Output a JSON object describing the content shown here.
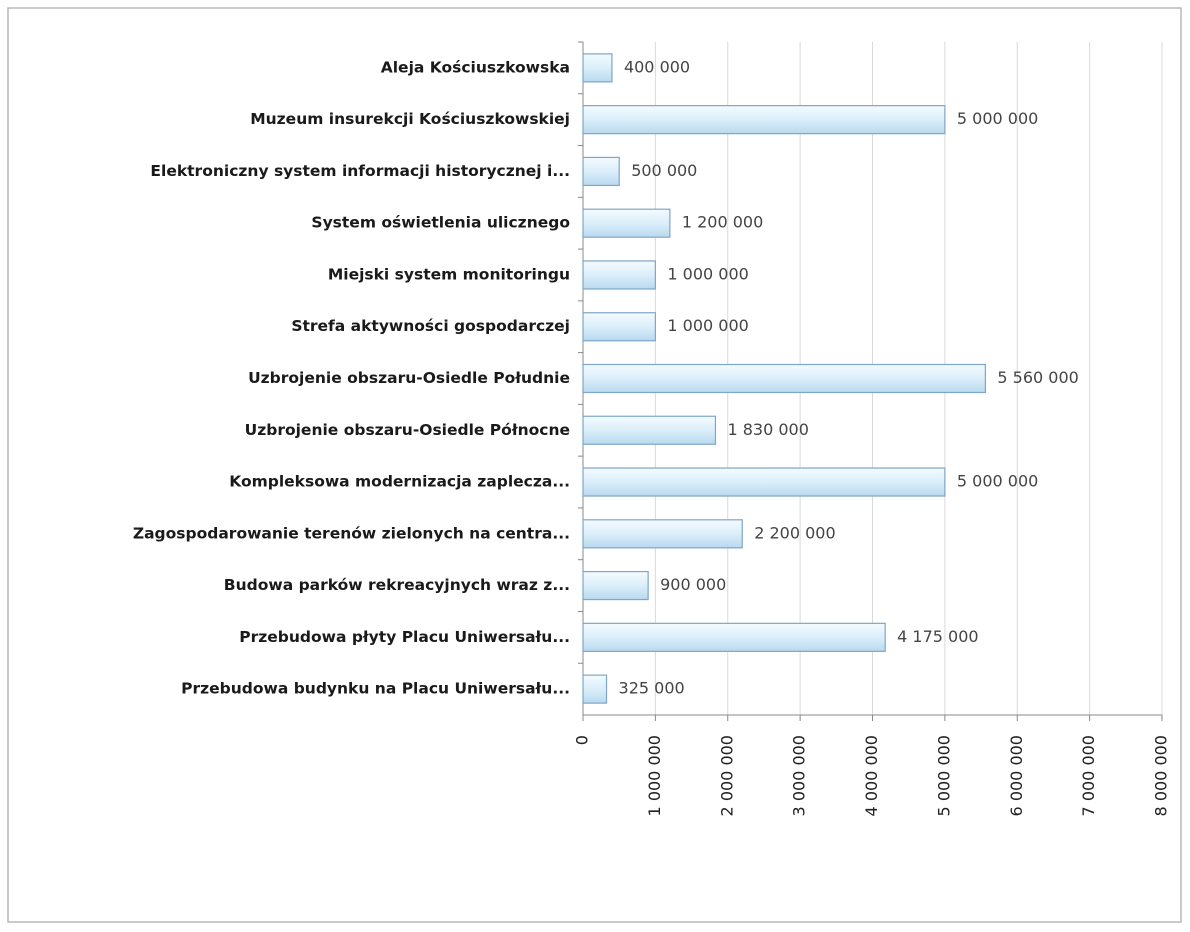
{
  "chart_data": {
    "type": "bar",
    "orientation": "horizontal",
    "categories": [
      "Aleja Kościuszkowska",
      "Muzeum insurekcji Kościuszkowskiej",
      "Elektroniczny system informacji historycznej i...",
      "System oświetlenia ulicznego",
      "Miejski system monitoringu",
      "Strefa aktywności gospodarczej",
      "Uzbrojenie obszaru-Osiedle Południe",
      "Uzbrojenie obszaru-Osiedle Północne",
      "Kompleksowa modernizacja zaplecza...",
      "Zagospodarowanie terenów zielonych na centra...",
      "Budowa parków rekreacyjnych wraz z...",
      "Przebudowa płyty Placu Uniwersału...",
      "Przebudowa budynku na Placu Uniwersału..."
    ],
    "values": [
      400000,
      5000000,
      500000,
      1200000,
      1000000,
      1000000,
      5560000,
      1830000,
      5000000,
      2200000,
      900000,
      4175000,
      325000
    ],
    "value_labels": [
      "400 000",
      "5 000 000",
      "500 000",
      "1 200 000",
      "1 000 000",
      "1 000 000",
      "5 560 000",
      "1 830 000",
      "5 000 000",
      "2 200 000",
      "900 000",
      "4 175 000",
      "325 000"
    ],
    "color": "#dbeefa",
    "xlim": [
      0,
      8000000
    ],
    "xticks": [
      0,
      {
        "value": 1000000,
        "label": "1 000 000"
      },
      {
        "value": 2000000,
        "label": "2 000 000"
      },
      {
        "value": 3000000,
        "label": "3 000 000"
      },
      {
        "value": 4000000,
        "label": "4 000 000"
      },
      {
        "value": 5000000,
        "label": "5 000 000"
      },
      {
        "value": 6000000,
        "label": "6 000 000"
      },
      {
        "value": 7000000,
        "label": "7 000 000"
      },
      {
        "value": 8000000,
        "label": "8 000 000"
      }
    ],
    "grid": true
  }
}
